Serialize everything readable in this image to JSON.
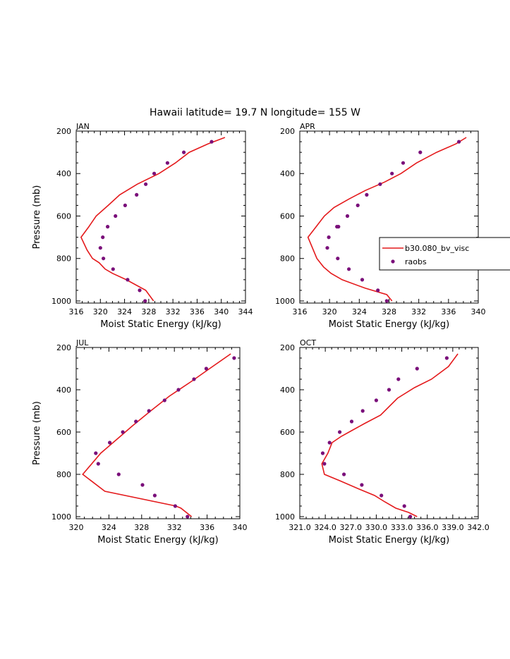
{
  "figure": {
    "title": "Hawaii  latitude= 19.7 N longitude= 155 W",
    "legend": {
      "placement": "right of APR panel",
      "entries": [
        "b30.080_bv_visc",
        "raobs"
      ]
    },
    "colors": {
      "model": "#e41a1c",
      "obs": "#7a0f7a",
      "axis": "#000000"
    }
  },
  "chart_data": [
    {
      "type": "line+scatter",
      "panel": "JAN",
      "xlabel": "Moist Static Energy (kJ/kg)",
      "ylabel": "Pressure (mb)",
      "xlim": [
        316,
        344
      ],
      "ylim": [
        1010,
        200
      ],
      "xticks": [
        316,
        320,
        324,
        328,
        332,
        336,
        340,
        344
      ],
      "xtick_labels": [
        "316",
        "320",
        "324",
        "328",
        "332",
        "336",
        "340",
        "344"
      ],
      "yticks": [
        200,
        400,
        600,
        800,
        1000
      ],
      "series": [
        {
          "name": "b30.080_bv_visc",
          "style": "line",
          "x": [
            328.8,
            327.5,
            324.3,
            322.0,
            320.8,
            319.8,
            318.7,
            317.8,
            316.8,
            318.1,
            319.3,
            321.3,
            323.2,
            326.1,
            329.7,
            332.4,
            334.7,
            337.8,
            340.6
          ],
          "y": [
            1000,
            950,
            900,
            870,
            850,
            820,
            800,
            760,
            700,
            650,
            600,
            550,
            500,
            450,
            400,
            350,
            300,
            260,
            230
          ]
        },
        {
          "name": "raobs",
          "style": "points",
          "x": [
            327.4,
            326.5,
            324.5,
            322.1,
            320.5,
            320.0,
            320.4,
            321.2,
            322.5,
            324.1,
            326.0,
            327.5,
            328.9,
            331.1,
            333.8,
            338.4
          ],
          "y": [
            1000,
            950,
            900,
            850,
            800,
            750,
            700,
            650,
            600,
            550,
            500,
            450,
            400,
            350,
            300,
            250
          ]
        }
      ]
    },
    {
      "type": "line+scatter",
      "panel": "APR",
      "xlabel": "Moist Static Energy (kJ/kg)",
      "ylabel": "",
      "xlim": [
        316,
        340
      ],
      "ylim": [
        1010,
        200
      ],
      "xticks": [
        316,
        320,
        324,
        328,
        332,
        336,
        340
      ],
      "xtick_labels": [
        "316",
        "320",
        "324",
        "328",
        "332",
        "336",
        "340"
      ],
      "yticks": [
        200,
        400,
        600,
        800,
        1000
      ],
      "series": [
        {
          "name": "b30.080_bv_visc",
          "style": "line",
          "x": [
            328.4,
            327.7,
            324.8,
            321.7,
            320.2,
            319.2,
            318.3,
            317.1,
            318.2,
            319.3,
            320.6,
            322.6,
            324.8,
            327.4,
            329.6,
            331.7,
            334.4,
            337.0,
            338.4
          ],
          "y": [
            1000,
            970,
            940,
            900,
            870,
            840,
            800,
            700,
            650,
            600,
            560,
            520,
            480,
            440,
            400,
            350,
            300,
            260,
            230
          ]
        },
        {
          "name": "raobs",
          "style": "points",
          "x": [
            327.7,
            326.5,
            324.4,
            322.6,
            321.1,
            319.7,
            319.9,
            321.0,
            321.2,
            322.4,
            323.8,
            325.0,
            326.8,
            328.4,
            329.9,
            332.2,
            337.4
          ],
          "y": [
            1000,
            950,
            900,
            850,
            800,
            750,
            700,
            650,
            650,
            600,
            550,
            500,
            450,
            400,
            350,
            300,
            250
          ]
        }
      ]
    },
    {
      "type": "line+scatter",
      "panel": "JUL",
      "xlabel": "Moist Static Energy (kJ/kg)",
      "ylabel": "Pressure (mb)",
      "xlim": [
        320,
        340
      ],
      "ylim": [
        1010,
        200
      ],
      "xticks": [
        320,
        324,
        328,
        332,
        336,
        340
      ],
      "xtick_labels": [
        "320",
        "324",
        "328",
        "332",
        "336",
        "340"
      ],
      "yticks": [
        200,
        400,
        600,
        800,
        1000
      ],
      "series": [
        {
          "name": "b30.080_bv_visc",
          "style": "line",
          "x": [
            334.1,
            332.8,
            332.2,
            323.5,
            320.8,
            323.0,
            325.1,
            326.9,
            329.1,
            331.4,
            334.1,
            336.3,
            338.9
          ],
          "y": [
            1000,
            960,
            950,
            880,
            800,
            700,
            630,
            570,
            500,
            430,
            360,
            300,
            230
          ]
        },
        {
          "name": "raobs",
          "style": "points",
          "x": [
            333.6,
            332.1,
            329.6,
            328.1,
            325.2,
            322.7,
            322.4,
            324.1,
            325.7,
            327.3,
            328.9,
            330.8,
            332.5,
            334.4,
            335.9,
            339.3
          ],
          "y": [
            1000,
            950,
            900,
            850,
            800,
            750,
            700,
            650,
            600,
            550,
            500,
            450,
            400,
            350,
            300,
            250
          ]
        }
      ]
    },
    {
      "type": "line+scatter",
      "panel": "OCT",
      "xlabel": "Moist Static Energy (kJ/kg)",
      "ylabel": "",
      "xlim": [
        321,
        342
      ],
      "ylim": [
        1010,
        200
      ],
      "xticks": [
        321,
        324,
        327,
        330,
        333,
        336,
        339,
        342
      ],
      "xtick_labels": [
        "321.0",
        "324.0",
        "327.0",
        "330.0",
        "333.0",
        "336.0",
        "339.0",
        "342.0"
      ],
      "yticks": [
        200,
        400,
        600,
        800,
        1000
      ],
      "series": [
        {
          "name": "b30.080_bv_visc",
          "style": "line",
          "x": [
            334.8,
            333.8,
            332.3,
            331.0,
            329.8,
            328.0,
            325.7,
            323.9,
            323.6,
            324.3,
            324.8,
            325.9,
            326.8,
            328.6,
            330.5,
            332.5,
            334.5,
            336.5,
            338.5,
            339.6
          ],
          "y": [
            1000,
            980,
            960,
            930,
            900,
            870,
            830,
            800,
            750,
            700,
            650,
            620,
            600,
            560,
            520,
            440,
            390,
            350,
            290,
            230
          ]
        },
        {
          "name": "raobs",
          "style": "points",
          "x": [
            334.0,
            333.3,
            330.6,
            328.3,
            326.2,
            323.9,
            323.7,
            324.5,
            325.7,
            327.1,
            328.4,
            330.0,
            331.5,
            332.6,
            334.8,
            338.3
          ],
          "y": [
            1000,
            950,
            900,
            850,
            800,
            750,
            700,
            650,
            600,
            550,
            500,
            450,
            400,
            350,
            300,
            250
          ]
        }
      ]
    }
  ]
}
